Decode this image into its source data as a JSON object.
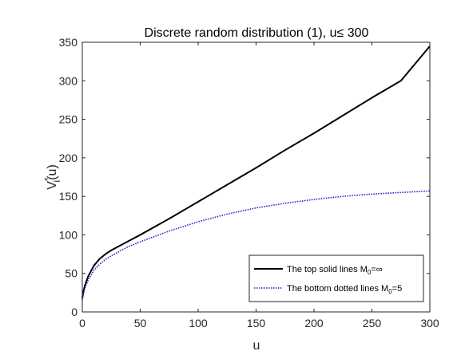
{
  "chart_data": {
    "type": "line",
    "title": "Discrete random distribution (1), u≤ 300",
    "xlabel": "u",
    "ylabel": "V*i(u)",
    "ylabel_parts": {
      "base": "V",
      "sup": "*",
      "sub": "i",
      "suffix": "(u)"
    },
    "xlim": [
      0,
      300
    ],
    "ylim": [
      0,
      350
    ],
    "x_ticks": [
      0,
      50,
      100,
      150,
      200,
      250,
      300
    ],
    "y_ticks": [
      0,
      50,
      100,
      150,
      200,
      250,
      300,
      350
    ],
    "grid": false,
    "legend_position": "bottom-right",
    "x": [
      0,
      1,
      2,
      5,
      10,
      15,
      20,
      25,
      30,
      40,
      50,
      75,
      100,
      125,
      150,
      175,
      200,
      225,
      250,
      275,
      300
    ],
    "series": [
      {
        "name": "The top solid lines M0=∞",
        "legend_text": {
          "pre": "The top solid lines M",
          "sub": "0",
          "post": "=∞"
        },
        "style": "solid",
        "color": "#000000",
        "values": [
          18,
          27,
          33,
          46,
          60,
          69,
          75,
          80,
          84,
          92,
          100,
          121,
          143,
          165,
          187,
          210,
          232,
          255,
          278,
          300,
          345
        ]
      },
      {
        "name": "The bottom dotted lines M0=5",
        "legend_text": {
          "pre": "The bottom dotted lines M",
          "sub": "0",
          "post": "=5"
        },
        "style": "dotted",
        "color": "#1f1fcc",
        "values": [
          16,
          24,
          30,
          41,
          54,
          62,
          68,
          73,
          77,
          85,
          91,
          105,
          117,
          127,
          135,
          141,
          146,
          150,
          153,
          155,
          157
        ]
      }
    ]
  }
}
